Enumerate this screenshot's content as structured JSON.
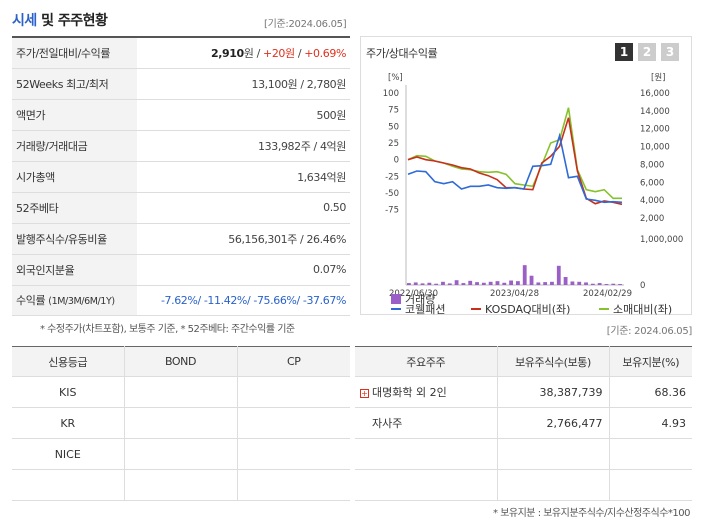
{
  "header": {
    "title_a": "시세",
    "title_b": "및 주주현황",
    "as_of": "[기준:2024.06.05]"
  },
  "market_rows": [
    {
      "label": "주가/전일대비/수익률",
      "parts": [
        {
          "text": "2,910",
          "cls": "bold"
        },
        {
          "text": "원 / ",
          "cls": ""
        },
        {
          "text": "+20원",
          "cls": "red"
        },
        {
          "text": " / ",
          "cls": ""
        },
        {
          "text": "+0.69%",
          "cls": "red"
        }
      ]
    },
    {
      "label": "52Weeks 최고/최저",
      "parts": [
        {
          "text": "13,100원 / 2,780원",
          "cls": ""
        }
      ]
    },
    {
      "label": "액면가",
      "parts": [
        {
          "text": "500원",
          "cls": ""
        }
      ]
    },
    {
      "label": "거래량/거래대금",
      "parts": [
        {
          "text": "133,982주 / 4억원",
          "cls": ""
        }
      ]
    },
    {
      "label": "시가총액",
      "parts": [
        {
          "text": "1,634억원",
          "cls": ""
        }
      ]
    },
    {
      "label": "52주베타",
      "parts": [
        {
          "text": "0.50",
          "cls": ""
        }
      ]
    },
    {
      "label": "발행주식수/유동비율",
      "parts": [
        {
          "text": "56,156,301주 / 26.46%",
          "cls": ""
        }
      ]
    },
    {
      "label": "외국인지분율",
      "parts": [
        {
          "text": "0.07%",
          "cls": ""
        }
      ]
    },
    {
      "label": "수익률",
      "label_small": "(1M/3M/6M/1Y)",
      "parts": [
        {
          "text": "-7.62%/ -11.42%/ -75.66%/ -37.67%",
          "cls": "blue"
        }
      ]
    }
  ],
  "notes": {
    "left": "* 수정주가(차트포함), 보통주 기준, * 52주베타: 주간수익률 기준",
    "mid_asof": "[기준: 2024.06.05]",
    "bottom": "* 보유지분 : 보유지분주식수/지수산정주식수*100"
  },
  "chart": {
    "title": "주가/상대수익률",
    "buttons": [
      "1",
      "2",
      "3"
    ],
    "left_unit": "[%]",
    "right_unit": "[원]"
  },
  "chart_data": {
    "type": "line",
    "x_ticks": [
      "2022/06/30",
      "2023/04/28",
      "2024/02/29"
    ],
    "y_left_ticks": [
      100,
      75,
      50,
      25,
      0,
      -25,
      -50,
      -75
    ],
    "y_left_range": [
      -87.5,
      100
    ],
    "y_right_ticks": [
      "16,000",
      "14,000",
      "12,000",
      "10,000",
      "8,000",
      "6,000",
      "4,000",
      "2,000"
    ],
    "y_right_range": [
      0,
      16000
    ],
    "volume_ticks": [
      "1,000,000",
      "0"
    ],
    "volume_range": [
      0,
      1500000
    ],
    "series": [
      {
        "name": "코웰패션",
        "color": "#2e6bd6",
        "values": [
          -22,
          -17,
          -18,
          -33,
          -36,
          -33,
          -44,
          -40,
          -40,
          -38,
          -42,
          -43,
          -42,
          -44,
          -10,
          -9,
          -7,
          36,
          -27,
          -25,
          -59,
          -61,
          -64,
          -63,
          -64
        ]
      },
      {
        "name": "KOSDAQ대비(좌)",
        "color": "#c8301e",
        "values": [
          0,
          4,
          0,
          -2,
          -5,
          -8,
          -12,
          -14,
          -20,
          -24,
          -30,
          -42,
          -42,
          -44,
          -45,
          -5,
          5,
          20,
          63,
          -17,
          -58,
          -66,
          -62,
          -64,
          -67
        ]
      },
      {
        "name": "소매대비(좌)",
        "color": "#86c22c",
        "values": [
          0,
          6,
          5,
          -2,
          -5,
          -10,
          -14,
          -15,
          -18,
          -19,
          -18,
          -22,
          -36,
          -38,
          -40,
          -8,
          25,
          30,
          78,
          -15,
          -45,
          -48,
          -45,
          -58,
          -58
        ]
      }
    ],
    "volume": {
      "name": "거래량",
      "color": "#9b5fc8",
      "values": [
        60000,
        80000,
        50000,
        70000,
        40000,
        100000,
        50000,
        150000,
        60000,
        130000,
        90000,
        70000,
        100000,
        120000,
        70000,
        140000,
        120000,
        620000,
        290000,
        80000,
        90000,
        100000,
        600000,
        250000,
        110000,
        100000,
        80000,
        40000,
        60000,
        30000,
        40000,
        30000
      ]
    }
  },
  "credit": {
    "headers": [
      "신용등급",
      "BOND",
      "CP"
    ],
    "rows": [
      [
        "KIS",
        "",
        ""
      ],
      [
        "KR",
        "",
        ""
      ],
      [
        "NICE",
        "",
        ""
      ],
      [
        "",
        "",
        ""
      ]
    ]
  },
  "holders": {
    "headers": [
      "주요주주",
      "보유주식수(보통)",
      "보유지분(%)"
    ],
    "rows": [
      {
        "name": "대명화학 외 2인",
        "shares": "38,387,739",
        "pct": "68.36",
        "expandable": true
      },
      {
        "name": "자사주",
        "shares": "2,766,477",
        "pct": "4.93",
        "expandable": false
      },
      {
        "name": "",
        "shares": "",
        "pct": "",
        "expandable": false
      },
      {
        "name": "",
        "shares": "",
        "pct": "",
        "expandable": false
      }
    ]
  }
}
